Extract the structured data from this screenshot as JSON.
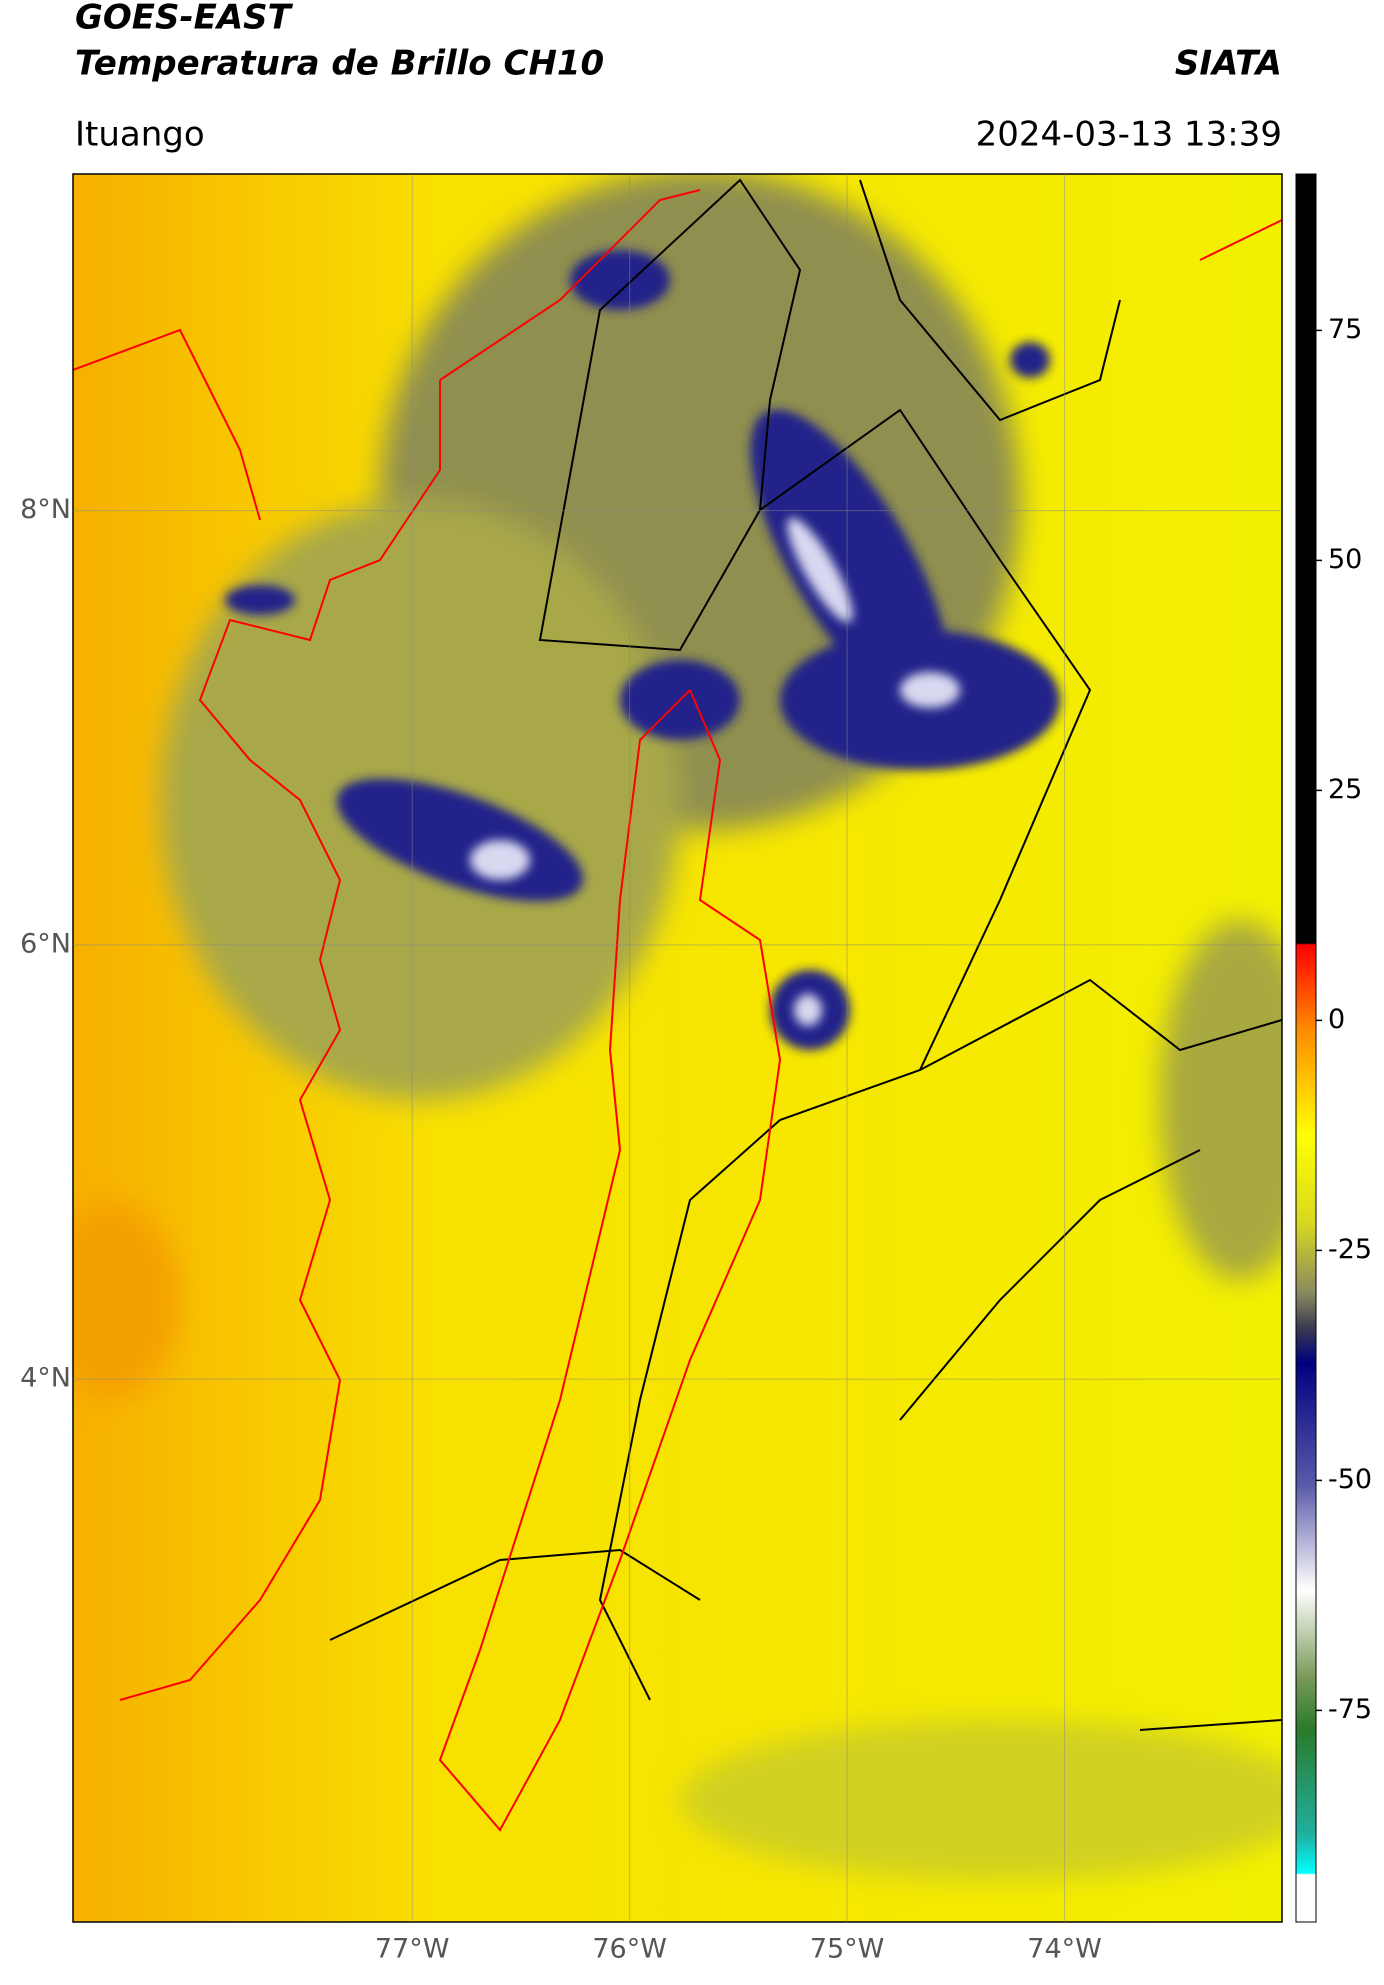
{
  "header": {
    "title": "GOES-EAST",
    "subtitle": "Temperatura de Brillo CH10",
    "source": "SIATA",
    "location": "Ituango",
    "datetime": "2024-03-13 13:39"
  },
  "map": {
    "xlim": [
      -78.56,
      -73.0
    ],
    "ylim": [
      1.5,
      9.55
    ],
    "xticks": [
      {
        "value": -77,
        "label": "77°W"
      },
      {
        "value": -76,
        "label": "76°W"
      },
      {
        "value": -75,
        "label": "75°W"
      },
      {
        "value": -74,
        "label": "74°W"
      }
    ],
    "yticks": [
      {
        "value": 8,
        "label": "8°N"
      },
      {
        "value": 6,
        "label": "6°N"
      },
      {
        "value": 4,
        "label": "4°N"
      }
    ]
  },
  "colorbar": {
    "lim": [
      -98,
      92
    ],
    "ticks": [
      -75,
      -50,
      -25,
      0,
      25,
      50,
      75
    ]
  }
}
